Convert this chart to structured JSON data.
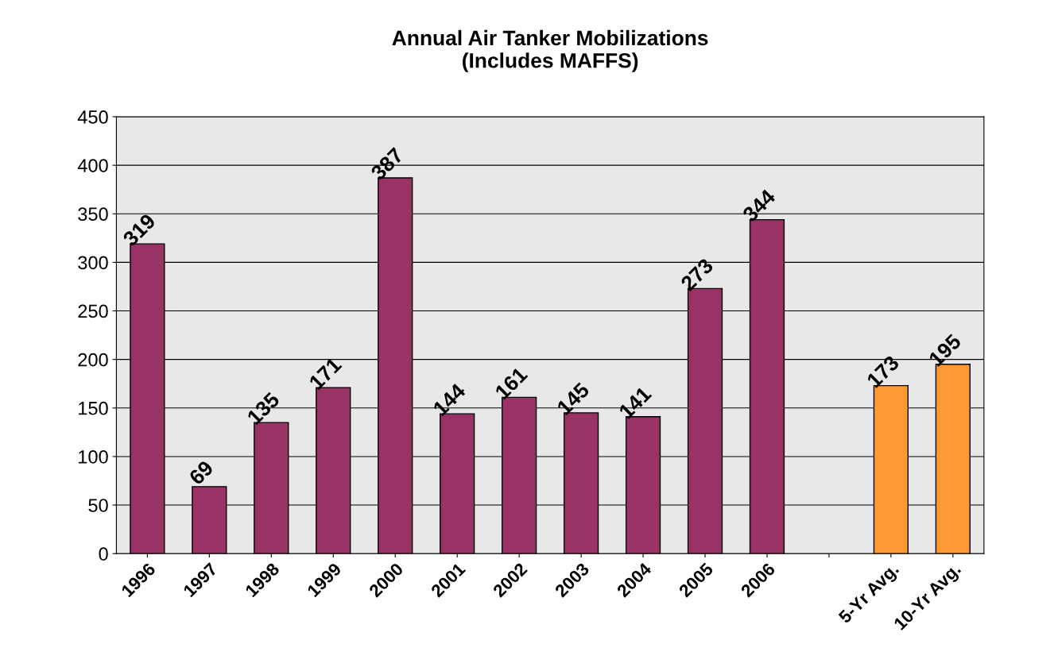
{
  "chart_data": {
    "type": "bar",
    "title": "Annual Air Tanker Mobilizations\n(Includes MAFFS)",
    "categories": [
      "1996",
      "1997",
      "1998",
      "1999",
      "2000",
      "2001",
      "2002",
      "2003",
      "2004",
      "2005",
      "2006",
      null,
      "5-Yr Avg.",
      "10-Yr Avg."
    ],
    "values": [
      319,
      69,
      135,
      171,
      387,
      144,
      161,
      145,
      141,
      273,
      344,
      null,
      173,
      195
    ],
    "colors": [
      "#993366",
      "#993366",
      "#993366",
      "#993366",
      "#993366",
      "#993366",
      "#993366",
      "#993366",
      "#993366",
      "#993366",
      "#993366",
      "#993366",
      "#ff9933",
      "#ff9933"
    ],
    "data_labels": true,
    "ylim": [
      0,
      450
    ],
    "yticks": [
      0,
      50,
      100,
      150,
      200,
      250,
      300,
      350,
      400,
      450
    ],
    "grid": "y",
    "legend": false
  }
}
